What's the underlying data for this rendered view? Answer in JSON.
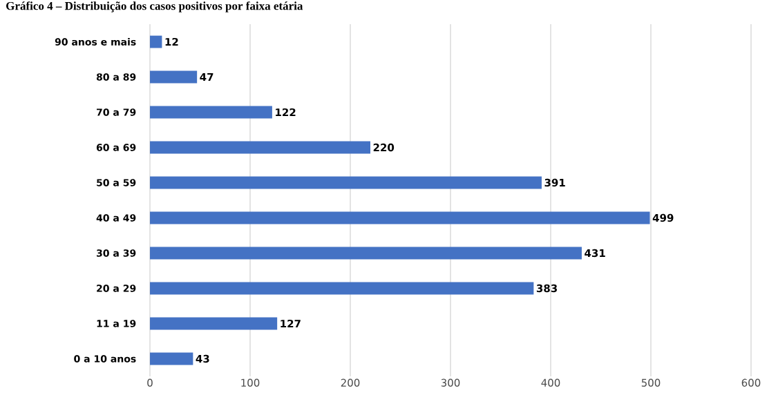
{
  "chart_data": {
    "type": "bar",
    "orientation": "horizontal",
    "title": "Gráfico 4 – Distribuição dos casos positivos por faixa etária",
    "categories": [
      "90 anos e mais",
      "80 a 89",
      "70 a 79",
      "60 a 69",
      "50 a 59",
      "40 a 49",
      "30 a 39",
      "20 a 29",
      "11 a 19",
      "0 a 10 anos"
    ],
    "values": [
      12,
      47,
      122,
      220,
      391,
      499,
      431,
      383,
      127,
      43
    ],
    "color": "#4472c4",
    "xlim": [
      0,
      600
    ],
    "xticks": [
      0,
      100,
      200,
      300,
      400,
      500,
      600
    ],
    "grid": "x",
    "data_labels": true
  }
}
